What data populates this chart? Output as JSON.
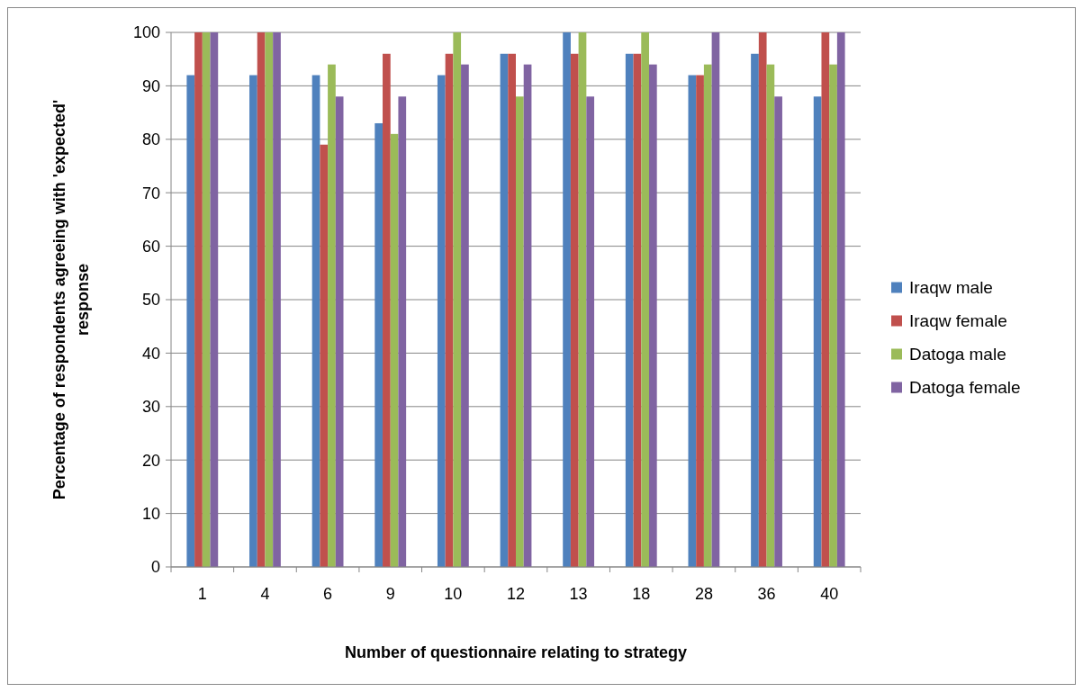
{
  "chart_data": {
    "type": "bar",
    "xlabel": "Number of questionnaire relating to strategy",
    "ylabel": "Percentage of respondents agreeing with 'expected' response",
    "categories": [
      "1",
      "4",
      "6",
      "9",
      "10",
      "12",
      "13",
      "18",
      "28",
      "36",
      "40"
    ],
    "series": [
      {
        "name": "Iraqw male",
        "color": "#4f81bd",
        "values": [
          92,
          92,
          92,
          83,
          92,
          96,
          100,
          96,
          92,
          96,
          88
        ]
      },
      {
        "name": "Iraqw female",
        "color": "#c0504d",
        "values": [
          100,
          100,
          79,
          96,
          96,
          96,
          96,
          96,
          92,
          100,
          100
        ]
      },
      {
        "name": "Datoga male",
        "color": "#9bbb59",
        "values": [
          100,
          100,
          94,
          81,
          100,
          88,
          100,
          100,
          94,
          94,
          94
        ]
      },
      {
        "name": "Datoga female",
        "color": "#8064a2",
        "values": [
          100,
          100,
          88,
          88,
          94,
          94,
          88,
          94,
          100,
          88,
          100
        ]
      }
    ],
    "ylim": [
      0,
      100
    ],
    "yticks": [
      0,
      10,
      20,
      30,
      40,
      50,
      60,
      70,
      80,
      90,
      100
    ],
    "grid": "y",
    "legend": "right"
  }
}
